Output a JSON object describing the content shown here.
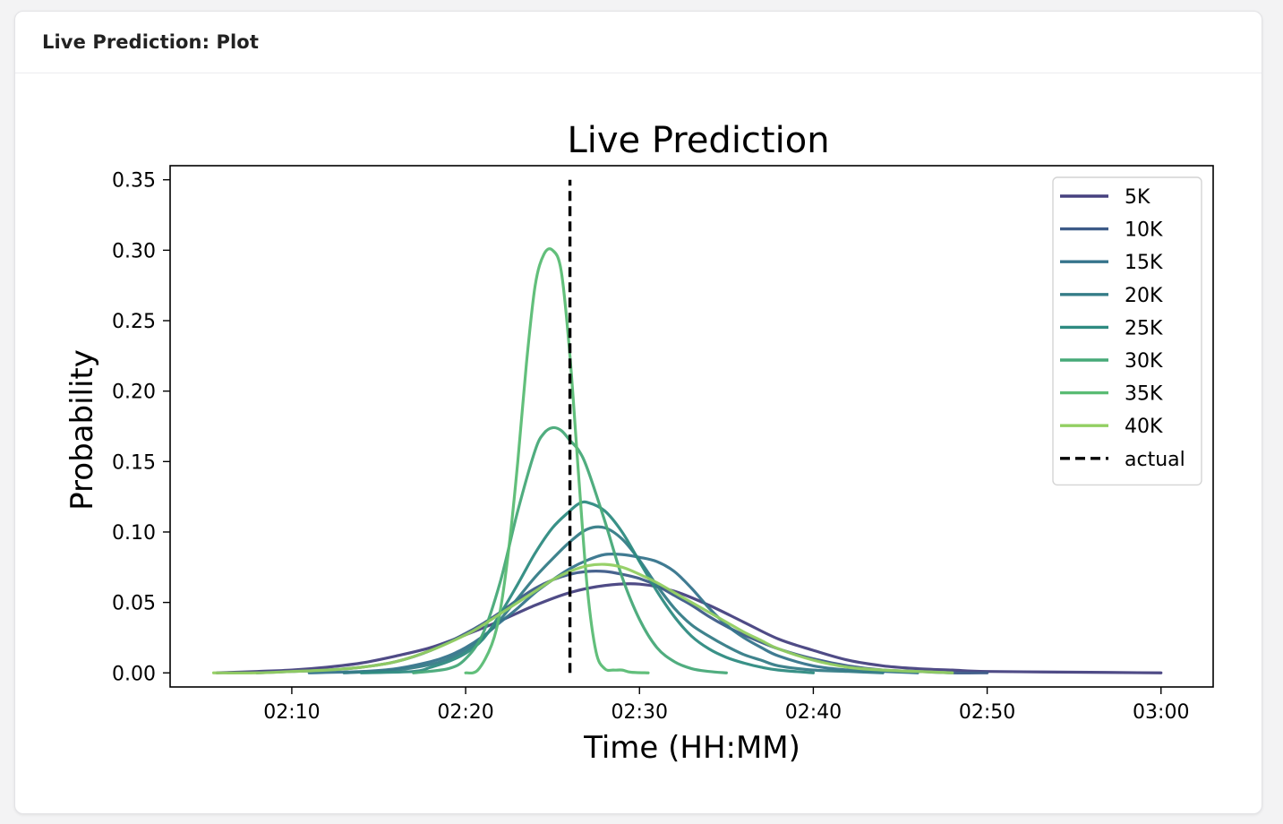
{
  "panel": {
    "title": "Live Prediction: Plot"
  },
  "chart_data": {
    "type": "line",
    "title": "Live Prediction",
    "xlabel": "Time (HH:MM)",
    "ylabel": "Probability",
    "x_unit": "minutes after 02:00",
    "xlim": [
      3,
      63
    ],
    "ylim": [
      -0.01,
      0.36
    ],
    "xticks": [
      {
        "value": 10,
        "label": "02:10"
      },
      {
        "value": 20,
        "label": "02:20"
      },
      {
        "value": 30,
        "label": "02:30"
      },
      {
        "value": 40,
        "label": "02:40"
      },
      {
        "value": 50,
        "label": "02:50"
      },
      {
        "value": 60,
        "label": "03:00"
      }
    ],
    "yticks": [
      {
        "value": 0.0,
        "label": "0.00"
      },
      {
        "value": 0.05,
        "label": "0.05"
      },
      {
        "value": 0.1,
        "label": "0.10"
      },
      {
        "value": 0.15,
        "label": "0.15"
      },
      {
        "value": 0.2,
        "label": "0.20"
      },
      {
        "value": 0.25,
        "label": "0.25"
      },
      {
        "value": 0.3,
        "label": "0.30"
      },
      {
        "value": 0.35,
        "label": "0.35"
      }
    ],
    "legend_position": "top-right",
    "grid": false,
    "series": [
      {
        "name": "5K",
        "color": "#46417f",
        "x": [
          5.7,
          8,
          10,
          12,
          14,
          16,
          18,
          20,
          22,
          24,
          26,
          28,
          30,
          32,
          34,
          36,
          38,
          40,
          42,
          44,
          46,
          48,
          50,
          55,
          60
        ],
        "y": [
          0,
          0.001,
          0.002,
          0.004,
          0.007,
          0.012,
          0.018,
          0.027,
          0.037,
          0.048,
          0.057,
          0.062,
          0.063,
          0.058,
          0.048,
          0.036,
          0.024,
          0.016,
          0.009,
          0.005,
          0.003,
          0.002,
          0.001,
          0.0005,
          0
        ]
      },
      {
        "name": "10K",
        "color": "#3d5b88",
        "x": [
          8,
          10,
          12,
          14,
          16,
          18,
          20,
          21,
          22,
          23,
          24,
          25,
          26,
          27,
          28,
          29,
          30,
          31,
          32,
          33,
          34,
          35,
          36,
          38,
          40,
          42,
          44,
          46,
          48,
          50
        ],
        "y": [
          0,
          0.001,
          0.002,
          0.004,
          0.008,
          0.016,
          0.028,
          0.035,
          0.043,
          0.052,
          0.06,
          0.066,
          0.07,
          0.072,
          0.072,
          0.07,
          0.067,
          0.062,
          0.055,
          0.048,
          0.04,
          0.033,
          0.027,
          0.017,
          0.01,
          0.005,
          0.002,
          0.001,
          0,
          0
        ]
      },
      {
        "name": "15K",
        "color": "#36748c",
        "x": [
          11,
          14,
          16,
          18,
          19,
          20,
          21,
          22,
          23,
          24,
          25,
          26,
          27,
          28,
          29,
          30,
          31,
          32,
          33,
          34,
          35,
          36,
          37,
          38,
          40,
          42,
          44,
          46
        ],
        "y": [
          0,
          0.001,
          0.003,
          0.008,
          0.012,
          0.018,
          0.026,
          0.036,
          0.046,
          0.057,
          0.066,
          0.074,
          0.08,
          0.084,
          0.084,
          0.082,
          0.079,
          0.072,
          0.06,
          0.046,
          0.034,
          0.025,
          0.018,
          0.012,
          0.005,
          0.002,
          0.001,
          0
        ]
      },
      {
        "name": "20K",
        "color": "#357c87",
        "x": [
          13,
          16,
          18,
          19,
          20,
          21,
          22,
          23,
          24,
          25,
          26,
          27,
          28,
          29,
          30,
          31,
          32,
          33,
          34,
          35,
          36,
          37,
          38,
          40,
          42,
          44
        ],
        "y": [
          0,
          0.002,
          0.006,
          0.01,
          0.016,
          0.025,
          0.038,
          0.053,
          0.068,
          0.081,
          0.093,
          0.102,
          0.103,
          0.095,
          0.08,
          0.062,
          0.046,
          0.034,
          0.026,
          0.019,
          0.013,
          0.009,
          0.005,
          0.002,
          0.001,
          0
        ]
      },
      {
        "name": "25K",
        "color": "#2e8b81",
        "x": [
          14,
          17,
          18,
          19,
          20,
          21,
          22,
          23,
          24,
          25,
          26,
          26.5,
          27,
          28,
          29,
          30,
          31,
          32,
          33,
          34,
          35,
          36,
          37,
          38,
          40
        ],
        "y": [
          0,
          0.001,
          0.004,
          0.008,
          0.014,
          0.024,
          0.042,
          0.063,
          0.085,
          0.103,
          0.115,
          0.12,
          0.121,
          0.115,
          0.1,
          0.079,
          0.058,
          0.04,
          0.026,
          0.017,
          0.011,
          0.007,
          0.004,
          0.002,
          0
        ]
      },
      {
        "name": "30K",
        "color": "#47a978",
        "x": [
          17,
          19,
          20,
          21,
          22,
          23,
          24,
          24.5,
          25,
          25.5,
          26,
          26.5,
          27,
          28,
          29,
          30,
          31,
          32,
          33,
          34,
          35
        ],
        "y": [
          0,
          0.003,
          0.01,
          0.028,
          0.065,
          0.115,
          0.158,
          0.17,
          0.174,
          0.172,
          0.165,
          0.158,
          0.145,
          0.108,
          0.068,
          0.038,
          0.018,
          0.008,
          0.003,
          0.001,
          0
        ]
      },
      {
        "name": "35K",
        "color": "#5abc74",
        "x": [
          20,
          20.7,
          21.5,
          22,
          22.5,
          23,
          23.5,
          24,
          24.5,
          25,
          25.5,
          26,
          26.5,
          27,
          27.5,
          28,
          28.5,
          29,
          29.5,
          30.5
        ],
        "y": [
          0,
          0.002,
          0.02,
          0.045,
          0.09,
          0.15,
          0.22,
          0.275,
          0.297,
          0.3,
          0.285,
          0.225,
          0.14,
          0.06,
          0.015,
          0.003,
          0.002,
          0.002,
          0.0005,
          0
        ]
      },
      {
        "name": "40K",
        "color": "#92cf62",
        "x": [
          5.5,
          8,
          10,
          12,
          14,
          16,
          18,
          20,
          21,
          22,
          23,
          24,
          25,
          26,
          27,
          28,
          29,
          30,
          31,
          32,
          33,
          34,
          35,
          36,
          37,
          38,
          40,
          42,
          44,
          46,
          48
        ],
        "y": [
          0,
          0,
          0.001,
          0.002,
          0.004,
          0.008,
          0.016,
          0.027,
          0.034,
          0.042,
          0.05,
          0.058,
          0.066,
          0.072,
          0.076,
          0.077,
          0.075,
          0.07,
          0.064,
          0.057,
          0.05,
          0.043,
          0.036,
          0.029,
          0.023,
          0.017,
          0.009,
          0.004,
          0.002,
          0.001,
          0
        ]
      }
    ],
    "actual": {
      "name": "actual",
      "x": 26.0,
      "y_range": [
        0,
        0.35
      ],
      "color": "#000000",
      "style": "dashed"
    }
  }
}
